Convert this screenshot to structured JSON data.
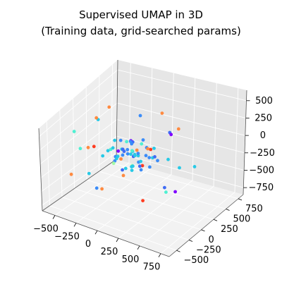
{
  "chart_data": {
    "type": "scatter",
    "projection": "3d",
    "title": "Supervised UMAP in 3D",
    "subtitle": "(Training data, grid-searched params)",
    "x_ticks": [
      "−500",
      "−250",
      "0",
      "250",
      "500",
      "750"
    ],
    "y_ticks": [
      "−500",
      "−250",
      "0",
      "250",
      "500",
      "750"
    ],
    "z_ticks": [
      "−750",
      "−500",
      "−250",
      "0",
      "250",
      "500"
    ],
    "xlim": [
      -650,
      850
    ],
    "ylim": [
      -650,
      850
    ],
    "zlim": [
      -850,
      650
    ],
    "grid": true,
    "legend": "none",
    "colormap": "rainbow",
    "palette": [
      "#7f00ff",
      "#3f6cf5",
      "#3b8cf8",
      "#27c9e6",
      "#4ff0d2",
      "#a4fca8",
      "#ff8a40",
      "#ff3b1f",
      "#1a40ff"
    ],
    "points": [
      {
        "x": -40,
        "y": 10,
        "z": -20,
        "c": 2
      },
      {
        "x": 60,
        "y": -30,
        "z": 40,
        "c": 3
      },
      {
        "x": -120,
        "y": 80,
        "z": -60,
        "c": 1
      },
      {
        "x": 150,
        "y": 40,
        "z": 10,
        "c": 2
      },
      {
        "x": -200,
        "y": -50,
        "z": 30,
        "c": 4
      },
      {
        "x": 20,
        "y": 120,
        "z": -100,
        "c": 3
      },
      {
        "x": 90,
        "y": -110,
        "z": 80,
        "c": 1
      },
      {
        "x": -60,
        "y": -90,
        "z": -40,
        "c": 6
      },
      {
        "x": 180,
        "y": 150,
        "z": 60,
        "c": 3
      },
      {
        "x": -150,
        "y": 60,
        "z": 120,
        "c": 2
      },
      {
        "x": 30,
        "y": -20,
        "z": -160,
        "c": 5
      },
      {
        "x": -90,
        "y": 200,
        "z": 20,
        "c": 1
      },
      {
        "x": 110,
        "y": -180,
        "z": -30,
        "c": 3
      },
      {
        "x": -30,
        "y": 50,
        "z": 170,
        "c": 0
      },
      {
        "x": 240,
        "y": -40,
        "z": -80,
        "c": 2
      },
      {
        "x": -250,
        "y": -120,
        "z": -50,
        "c": 3
      },
      {
        "x": 70,
        "y": 90,
        "z": 130,
        "c": 4
      },
      {
        "x": -10,
        "y": -150,
        "z": 90,
        "c": 2
      },
      {
        "x": 130,
        "y": 10,
        "z": -140,
        "c": 7
      },
      {
        "x": -180,
        "y": 140,
        "z": -90,
        "c": 3
      },
      {
        "x": 0,
        "y": 0,
        "z": 0,
        "c": 3
      },
      {
        "x": 50,
        "y": 60,
        "z": -10,
        "c": 2
      },
      {
        "x": -80,
        "y": -20,
        "z": 60,
        "c": 1
      },
      {
        "x": 200,
        "y": 90,
        "z": -40,
        "c": 3
      },
      {
        "x": -140,
        "y": -70,
        "z": -120,
        "c": 2
      },
      {
        "x": 100,
        "y": -60,
        "z": 150,
        "c": 6
      },
      {
        "x": -40,
        "y": 160,
        "z": -150,
        "c": 3
      },
      {
        "x": 160,
        "y": -130,
        "z": 30,
        "c": 2
      },
      {
        "x": -220,
        "y": 30,
        "z": -10,
        "c": 3
      },
      {
        "x": 40,
        "y": -240,
        "z": -70,
        "c": 1
      },
      {
        "x": -110,
        "y": 110,
        "z": 80,
        "c": 4
      },
      {
        "x": 80,
        "y": 180,
        "z": 10,
        "c": 2
      },
      {
        "x": -20,
        "y": -60,
        "z": -200,
        "c": 3
      },
      {
        "x": 260,
        "y": 20,
        "z": 50,
        "c": 1
      },
      {
        "x": -170,
        "y": -160,
        "z": 100,
        "c": 3
      },
      {
        "x": 10,
        "y": 230,
        "z": 70,
        "c": 2
      },
      {
        "x": 120,
        "y": -10,
        "z": -60,
        "c": 3
      },
      {
        "x": -60,
        "y": 40,
        "z": 20,
        "c": 2
      },
      {
        "x": 70,
        "y": -80,
        "z": -110,
        "c": 3
      },
      {
        "x": -100,
        "y": -130,
        "z": 10,
        "c": 2
      },
      {
        "x": 190,
        "y": 60,
        "z": 110,
        "c": 7
      },
      {
        "x": -30,
        "y": 90,
        "z": -30,
        "c": 3
      },
      {
        "x": 140,
        "y": 130,
        "z": -90,
        "c": 2
      },
      {
        "x": -190,
        "y": 10,
        "z": 140,
        "c": 3
      },
      {
        "x": 30,
        "y": -30,
        "z": 90,
        "c": 4
      },
      {
        "x": -70,
        "y": 140,
        "z": 40,
        "c": 2
      },
      {
        "x": 90,
        "y": 30,
        "z": -180,
        "c": 1
      },
      {
        "x": -130,
        "y": -30,
        "z": -70,
        "c": 3
      },
      {
        "x": 170,
        "y": -90,
        "z": -120,
        "c": 2
      },
      {
        "x": -50,
        "y": -200,
        "z": 50,
        "c": 3
      },
      {
        "x": -420,
        "y": 300,
        "z": 380,
        "c": 6
      },
      {
        "x": 380,
        "y": -420,
        "z": -300,
        "c": 7
      },
      {
        "x": -460,
        "y": -380,
        "z": -280,
        "c": 6
      },
      {
        "x": 420,
        "y": 200,
        "z": 420,
        "c": 6
      },
      {
        "x": -380,
        "y": 420,
        "z": -380,
        "c": 0
      },
      {
        "x": 520,
        "y": -200,
        "z": 280,
        "c": 3
      },
      {
        "x": -300,
        "y": -480,
        "z": 320,
        "c": 4
      },
      {
        "x": 300,
        "y": 480,
        "z": -420,
        "c": 3
      },
      {
        "x": -520,
        "y": 60,
        "z": -150,
        "c": 6
      },
      {
        "x": 480,
        "y": 80,
        "z": -460,
        "c": 0
      },
      {
        "x": 60,
        "y": 520,
        "z": 300,
        "c": 6
      },
      {
        "x": -80,
        "y": -540,
        "z": -220,
        "c": 2
      },
      {
        "x": 340,
        "y": -300,
        "z": 460,
        "c": 6
      },
      {
        "x": -340,
        "y": 260,
        "z": -460,
        "c": 5
      },
      {
        "x": 240,
        "y": 360,
        "z": 180,
        "c": 1
      },
      {
        "x": -260,
        "y": -280,
        "z": 220,
        "c": 7
      },
      {
        "x": 560,
        "y": 320,
        "z": -200,
        "c": 3
      },
      {
        "x": -560,
        "y": -140,
        "z": 240,
        "c": 4
      },
      {
        "x": 200,
        "y": -520,
        "z": 120,
        "c": 6
      },
      {
        "x": -200,
        "y": 540,
        "z": 160,
        "c": 2
      },
      {
        "x": 440,
        "y": -80,
        "z": -300,
        "c": 1
      },
      {
        "x": -440,
        "y": 120,
        "z": 300,
        "c": 3
      },
      {
        "x": 100,
        "y": 380,
        "z": -320,
        "c": 2
      },
      {
        "x": -120,
        "y": -360,
        "z": -380,
        "c": 6
      },
      {
        "x": 360,
        "y": 160,
        "z": 340,
        "c": 0
      },
      {
        "x": -360,
        "y": -200,
        "z": -340,
        "c": 3
      },
      {
        "x": 600,
        "y": -360,
        "z": -100,
        "c": 4
      },
      {
        "x": -600,
        "y": 360,
        "z": 100,
        "c": 6
      },
      {
        "x": 150,
        "y": -300,
        "z": 500,
        "c": 2
      },
      {
        "x": -150,
        "y": 300,
        "z": -520,
        "c": 3
      }
    ]
  }
}
